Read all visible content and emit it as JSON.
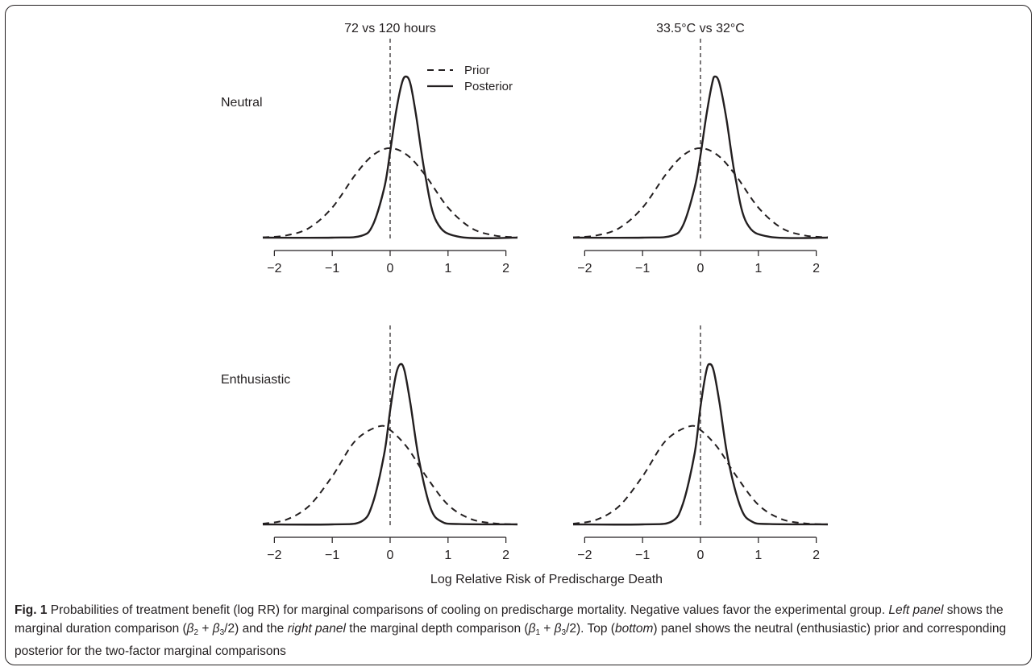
{
  "figure": {
    "xlabel": "Log Relative Risk of Predischarge Death",
    "column_titles": [
      "72 vs 120 hours",
      "33.5°C vs 32°C"
    ],
    "row_labels": [
      "Neutral",
      "Enthusiastic"
    ],
    "legend": {
      "prior": "Prior",
      "posterior": "Posterior"
    }
  },
  "caption": {
    "label": "Fig. 1",
    "s1": " Probabilities of treatment benefit (log RR) for marginal comparisons of cooling on predischarge mortality. Negative values favor the experimental group. ",
    "left_panel": "Left panel",
    "s2": " shows the marginal duration comparison (",
    "beta_a": "β",
    "sub_2": "2",
    "plus": " + ",
    "beta_b": "β",
    "sub_3a": "3",
    "s3": "/2) and the ",
    "right_panel": "right panel",
    "s4": " the marginal depth comparison (",
    "beta_c": "β",
    "sub_1": "1",
    "plus2": " + ",
    "beta_d": "β",
    "sub_3b": "3",
    "s5": "/2). Top (",
    "bottom": "bottom",
    "s6": ") panel shows the neutral (enthusiastic) prior and corresponding posterior for the two-factor marginal comparisons"
  },
  "chart_data": [
    {
      "type": "line",
      "panel": "top-left",
      "column": "72 vs 120 hours",
      "row": "Neutral",
      "xlim": [
        -2.2,
        2.2
      ],
      "xticks": [
        -2,
        -1,
        0,
        1,
        2
      ],
      "reference_line_x": 0,
      "legend_placement": "top-right",
      "series": [
        {
          "name": "Prior",
          "style": "dashed",
          "x": [
            -2.2,
            -1.8,
            -1.4,
            -1.0,
            -0.6,
            -0.3,
            0.0,
            0.3,
            0.6,
            1.0,
            1.4,
            1.8,
            2.2
          ],
          "y": [
            0.01,
            0.06,
            0.27,
            0.84,
            1.76,
            2.3,
            2.5,
            2.3,
            1.76,
            0.84,
            0.27,
            0.06,
            0.01
          ]
        },
        {
          "name": "Posterior",
          "style": "solid",
          "x": [
            -2.2,
            -1.0,
            -0.5,
            -0.3,
            -0.1,
            0.0,
            0.1,
            0.2,
            0.27,
            0.35,
            0.45,
            0.6,
            0.8,
            1.2,
            2.2
          ],
          "y": [
            0,
            0,
            0.05,
            0.35,
            1.4,
            2.4,
            3.5,
            4.3,
            4.5,
            4.3,
            3.4,
            1.8,
            0.45,
            0.02,
            0
          ]
        }
      ]
    },
    {
      "type": "line",
      "panel": "top-right",
      "column": "33.5°C vs 32°C",
      "row": "Neutral",
      "xlim": [
        -2.2,
        2.2
      ],
      "xticks": [
        -2,
        -1,
        0,
        1,
        2
      ],
      "reference_line_x": 0,
      "series": [
        {
          "name": "Prior",
          "style": "dashed",
          "x": [
            -2.2,
            -1.8,
            -1.4,
            -1.0,
            -0.6,
            -0.3,
            0.0,
            0.3,
            0.6,
            1.0,
            1.4,
            1.8,
            2.2
          ],
          "y": [
            0.01,
            0.06,
            0.27,
            0.84,
            1.76,
            2.3,
            2.5,
            2.3,
            1.76,
            0.84,
            0.27,
            0.06,
            0.01
          ]
        },
        {
          "name": "Posterior",
          "style": "solid",
          "x": [
            -2.2,
            -1.0,
            -0.5,
            -0.3,
            -0.1,
            0.0,
            0.1,
            0.2,
            0.25,
            0.33,
            0.45,
            0.6,
            0.8,
            1.2,
            2.2
          ],
          "y": [
            0,
            0,
            0.05,
            0.35,
            1.4,
            2.3,
            3.4,
            4.3,
            4.5,
            4.3,
            3.3,
            1.7,
            0.4,
            0.02,
            0
          ]
        }
      ]
    },
    {
      "type": "line",
      "panel": "bottom-left",
      "column": "72 vs 120 hours",
      "row": "Enthusiastic",
      "xlim": [
        -2.2,
        2.2
      ],
      "xticks": [
        -2,
        -1,
        0,
        1,
        2
      ],
      "reference_line_x": 0,
      "series": [
        {
          "name": "Prior",
          "style": "dashed",
          "x": [
            -2.2,
            -1.8,
            -1.4,
            -1.0,
            -0.6,
            -0.2,
            0.0,
            0.3,
            0.6,
            1.0,
            1.4,
            1.8,
            2.2
          ],
          "y": [
            0.02,
            0.13,
            0.52,
            1.35,
            2.35,
            2.75,
            2.65,
            2.15,
            1.4,
            0.55,
            0.15,
            0.03,
            0.0
          ]
        },
        {
          "name": "Posterior",
          "style": "solid",
          "x": [
            -2.2,
            -1.0,
            -0.5,
            -0.3,
            -0.1,
            0.0,
            0.1,
            0.18,
            0.25,
            0.35,
            0.5,
            0.7,
            0.9,
            1.2,
            2.2
          ],
          "y": [
            0,
            0,
            0.08,
            0.6,
            2.0,
            3.2,
            4.2,
            4.5,
            4.3,
            3.4,
            1.8,
            0.45,
            0.07,
            0.01,
            0
          ]
        }
      ]
    },
    {
      "type": "line",
      "panel": "bottom-right",
      "column": "33.5°C vs 32°C",
      "row": "Enthusiastic",
      "xlim": [
        -2.2,
        2.2
      ],
      "xticks": [
        -2,
        -1,
        0,
        1,
        2
      ],
      "reference_line_x": 0,
      "series": [
        {
          "name": "Prior",
          "style": "dashed",
          "x": [
            -2.2,
            -1.8,
            -1.4,
            -1.0,
            -0.6,
            -0.2,
            0.0,
            0.3,
            0.6,
            1.0,
            1.4,
            1.8,
            2.2
          ],
          "y": [
            0.02,
            0.13,
            0.52,
            1.35,
            2.35,
            2.75,
            2.65,
            2.15,
            1.4,
            0.55,
            0.15,
            0.03,
            0.0
          ]
        },
        {
          "name": "Posterior",
          "style": "solid",
          "x": [
            -2.2,
            -1.0,
            -0.5,
            -0.3,
            -0.1,
            0.0,
            0.1,
            0.16,
            0.23,
            0.33,
            0.48,
            0.7,
            0.9,
            1.2,
            2.2
          ],
          "y": [
            0,
            0,
            0.08,
            0.6,
            2.0,
            3.3,
            4.3,
            4.5,
            4.3,
            3.4,
            1.8,
            0.45,
            0.07,
            0.01,
            0
          ]
        }
      ]
    }
  ]
}
